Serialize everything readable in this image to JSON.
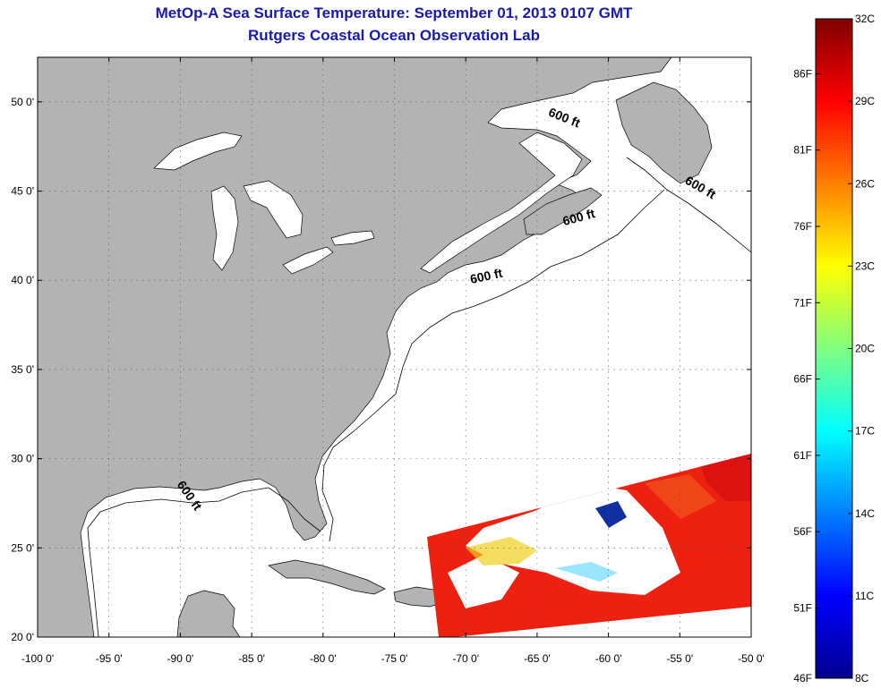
{
  "header": {
    "title": "MetOp-A Sea Surface Temperature:  September 01, 2013 0107 GMT",
    "subtitle": "Rutgers Coastal Ocean Observation Lab"
  },
  "map": {
    "lon_range": [
      -100,
      -50
    ],
    "lat_range": [
      20,
      52.5
    ],
    "lon_ticks": [
      "-100 0'",
      "-95 0'",
      "-90 0'",
      "-85 0'",
      "-80 0'",
      "-75 0'",
      "-70 0'",
      "-65 0'",
      "-60 0'",
      "-55 0'",
      "-50 0'"
    ],
    "lat_ticks": [
      "20 0'",
      "25 0'",
      "30 0'",
      "35 0'",
      "40 0'",
      "45 0'",
      "50 0'"
    ],
    "contour_labels": [
      {
        "text": "600 ft",
        "lon": -63.2,
        "lat": 48.9,
        "rot": 22
      },
      {
        "text": "600 ft",
        "lon": -53.7,
        "lat": 45.0,
        "rot": 30
      },
      {
        "text": "600 ft",
        "lon": -62.0,
        "lat": 43.3,
        "rot": -15
      },
      {
        "text": "600 ft",
        "lon": -68.5,
        "lat": 40.0,
        "rot": -12
      },
      {
        "text": "600 ft",
        "lon": -89.6,
        "lat": 27.8,
        "rot": 55
      }
    ],
    "land_color": "#b3b3b3",
    "water_color": "#ffffff",
    "grid": "dotted"
  },
  "colorbar": {
    "celsius_range": [
      8,
      32
    ],
    "fahrenheit_range": [
      46,
      90
    ],
    "c_ticks": [
      "32C",
      "29C",
      "26C",
      "23C",
      "20C",
      "17C",
      "14C",
      "11C",
      "8C"
    ],
    "f_ticks": [
      "86F",
      "81F",
      "76F",
      "71F",
      "66F",
      "61F",
      "56F",
      "51F",
      "46F"
    ]
  }
}
